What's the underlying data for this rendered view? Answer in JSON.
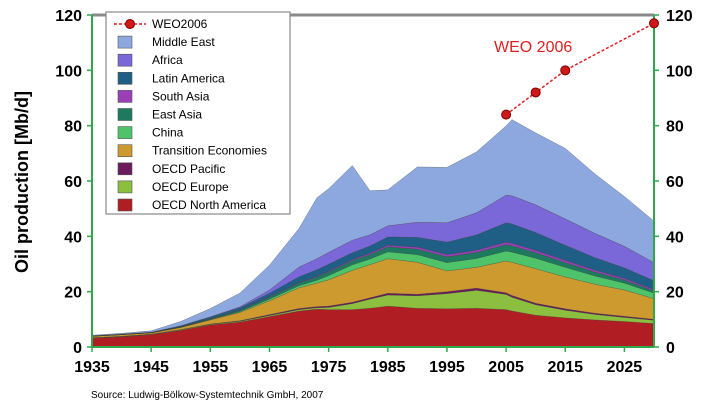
{
  "chart_data": {
    "type": "area",
    "stacked": true,
    "ylabel": "Oil production [Mb/d]",
    "ylim": [
      0,
      120
    ],
    "xlim": [
      1935,
      2030
    ],
    "x_ticks": [
      1935,
      1945,
      1955,
      1965,
      1975,
      1985,
      1995,
      2005,
      2015,
      2025
    ],
    "y_ticks": [
      0,
      20,
      40,
      60,
      80,
      100,
      120
    ],
    "grid": false,
    "legend_position": "top-left",
    "x": [
      1935,
      1940,
      1945,
      1950,
      1955,
      1960,
      1965,
      1970,
      1973,
      1975,
      1979,
      1982,
      1985,
      1990,
      1995,
      2000,
      2005,
      2006,
      2010,
      2015,
      2020,
      2025,
      2030
    ],
    "series": [
      {
        "name": "OECD North America",
        "color": "#b01e23",
        "values": [
          3.2,
          3.7,
          4.5,
          6.0,
          8.0,
          9.0,
          11.0,
          13.0,
          13.7,
          13.5,
          13.5,
          14.0,
          14.8,
          14.0,
          13.8,
          14.0,
          13.5,
          13.0,
          11.5,
          10.5,
          9.8,
          9.2,
          8.5
        ]
      },
      {
        "name": "OECD Europe",
        "color": "#8cbf3f",
        "values": [
          0.1,
          0.1,
          0.1,
          0.2,
          0.2,
          0.3,
          0.4,
          0.5,
          0.5,
          0.8,
          2.2,
          3.3,
          4.0,
          4.5,
          5.5,
          6.5,
          5.5,
          5.0,
          3.8,
          2.8,
          2.0,
          1.5,
          1.2
        ]
      },
      {
        "name": "OECD Pacific",
        "color": "#6b1a5c",
        "values": [
          0.05,
          0.05,
          0.05,
          0.1,
          0.1,
          0.2,
          0.3,
          0.4,
          0.4,
          0.5,
          0.5,
          0.5,
          0.6,
          0.6,
          0.7,
          0.8,
          0.6,
          0.6,
          0.5,
          0.5,
          0.4,
          0.4,
          0.3
        ]
      },
      {
        "name": "Transition Economies",
        "color": "#cc9a2e",
        "values": [
          0.5,
          0.6,
          0.5,
          0.8,
          1.5,
          3.0,
          5.0,
          7.5,
          8.5,
          9.5,
          11.5,
          12.0,
          12.5,
          11.5,
          7.5,
          7.5,
          11.5,
          12.0,
          12.5,
          11.5,
          10.5,
          9.5,
          7.5
        ]
      },
      {
        "name": "China",
        "color": "#4fc36a",
        "values": [
          0.0,
          0.0,
          0.0,
          0.0,
          0.1,
          0.3,
          0.6,
          0.8,
          1.0,
          1.5,
          2.0,
          2.0,
          2.5,
          2.8,
          3.0,
          3.2,
          3.6,
          3.7,
          3.8,
          3.5,
          3.0,
          2.5,
          2.0
        ]
      },
      {
        "name": "East Asia",
        "color": "#1e7a5e",
        "values": [
          0.1,
          0.1,
          0.1,
          0.2,
          0.3,
          0.5,
          0.7,
          1.0,
          1.2,
          1.3,
          1.5,
          1.6,
          1.8,
          2.0,
          2.1,
          2.2,
          2.3,
          2.3,
          2.0,
          1.7,
          1.4,
          1.1,
          0.8
        ]
      },
      {
        "name": "South Asia",
        "color": "#9a3fb8",
        "values": [
          0.0,
          0.0,
          0.0,
          0.0,
          0.1,
          0.1,
          0.2,
          0.2,
          0.3,
          0.3,
          0.4,
          0.5,
          0.6,
          0.7,
          0.8,
          0.8,
          0.9,
          0.9,
          0.8,
          0.8,
          0.7,
          0.6,
          0.5
        ]
      },
      {
        "name": "Latin America",
        "color": "#1f5f86",
        "values": [
          0.1,
          0.1,
          0.1,
          0.3,
          0.5,
          0.8,
          1.2,
          2.0,
          2.3,
          2.5,
          2.5,
          2.6,
          3.0,
          3.5,
          4.5,
          5.5,
          7.0,
          7.0,
          6.5,
          5.5,
          4.5,
          3.8,
          3.2
        ]
      },
      {
        "name": "Africa",
        "color": "#7b68d8",
        "values": [
          0.0,
          0.0,
          0.0,
          0.1,
          0.1,
          0.3,
          1.2,
          3.5,
          4.0,
          4.3,
          4.5,
          4.0,
          4.0,
          5.5,
          7.0,
          8.0,
          10.0,
          10.2,
          10.0,
          9.5,
          8.8,
          7.8,
          6.5
        ]
      },
      {
        "name": "Middle East",
        "color": "#8ca8de",
        "values": [
          0.2,
          0.3,
          0.5,
          1.5,
          3.0,
          5.0,
          9.0,
          14.0,
          22.0,
          23.0,
          27.0,
          16.0,
          13.0,
          20.0,
          20.0,
          22.0,
          25.0,
          27.5,
          26.0,
          25.5,
          21.5,
          18.0,
          15.0
        ]
      }
    ],
    "weo2006": {
      "name": "WEO2006",
      "annotation": "WEO 2006",
      "color": "#e02020",
      "x": [
        2005,
        2010,
        2015,
        2030
      ],
      "values": [
        84,
        92,
        100,
        117
      ]
    },
    "source": "Source: Ludwig-Bölkow-Systemtechnik GmbH, 2007"
  }
}
